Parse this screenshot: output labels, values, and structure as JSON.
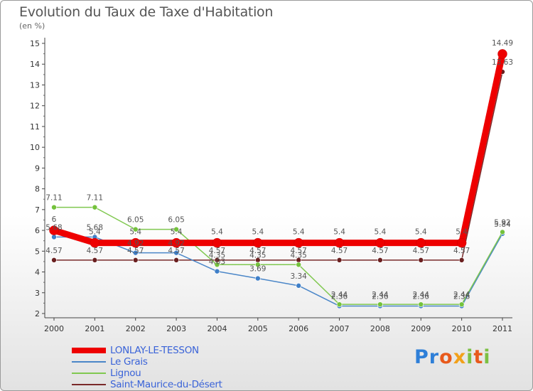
{
  "header": {
    "title": "Evolution du Taux de Taxe d'Habitation",
    "unit": "(en %)"
  },
  "brand": {
    "letters": [
      "P",
      "r",
      "o",
      "x",
      "i",
      "t",
      "i"
    ],
    "colors": [
      "#2e7fd8",
      "#2e7fd8",
      "#e85a1c",
      "#f2a11a",
      "#7cc043",
      "#e85a1c",
      "#7cc043"
    ]
  },
  "chart_data": {
    "type": "line",
    "title": "Evolution du Taux de Taxe d'Habitation",
    "ylabel": "(en %)",
    "xlabel": "",
    "x": [
      "2000",
      "2001",
      "2002",
      "2003",
      "2004",
      "2005",
      "2006",
      "2007",
      "2008",
      "2009",
      "2010",
      "2011"
    ],
    "ylim": [
      2,
      15
    ],
    "yticks": [
      2,
      3,
      4,
      5,
      6,
      7,
      8,
      9,
      10,
      11,
      12,
      13,
      14,
      15
    ],
    "grid": false,
    "legend_position": "bottom-left",
    "series": [
      {
        "name": "LONLAY-LE-TESSON",
        "color": "#ee0000",
        "values": [
          6,
          5.4,
          5.4,
          5.4,
          5.4,
          5.4,
          5.4,
          5.4,
          5.4,
          5.4,
          5.4,
          14.49
        ],
        "labels": [
          "6",
          "5.4",
          "5.4",
          "5.4",
          "5.4",
          "5.4",
          "5.4",
          "5.4",
          "5.4",
          "5.4",
          "5.4",
          "14.49"
        ]
      },
      {
        "name": "Le Grais",
        "color": "#4a86c8",
        "values": [
          5.68,
          5.68,
          4.92,
          4.92,
          4.03,
          3.69,
          3.34,
          2.36,
          2.36,
          2.36,
          2.36,
          5.84
        ],
        "labels": [
          "5.68",
          "5.68",
          "4.92",
          "4.92",
          "4.03",
          "3.69",
          "3.34",
          "2.36",
          "2.36",
          "2.36",
          "2.36",
          "5.84"
        ]
      },
      {
        "name": "Lignou",
        "color": "#80c850",
        "values": [
          7.11,
          7.11,
          6.05,
          6.05,
          4.35,
          4.35,
          4.35,
          2.44,
          2.44,
          2.44,
          2.44,
          5.92
        ],
        "labels": [
          "7.11",
          "7.11",
          "6.05",
          "6.05",
          "4.35",
          "4.35",
          "4.35",
          "2.44",
          "2.44",
          "2.44",
          "2.44",
          "5.92"
        ]
      },
      {
        "name": "Saint-Maurice-du-Désert",
        "color": "#7a2a2a",
        "values": [
          4.57,
          4.57,
          4.57,
          4.57,
          4.57,
          4.57,
          4.57,
          4.57,
          4.57,
          4.57,
          4.57,
          13.63
        ],
        "labels": [
          "4.57",
          "4.57",
          "4.57",
          "4.57",
          "4.57",
          "4.57",
          "4.57",
          "4.57",
          "4.57",
          "4.57",
          "4.57",
          "13.63"
        ]
      }
    ]
  }
}
